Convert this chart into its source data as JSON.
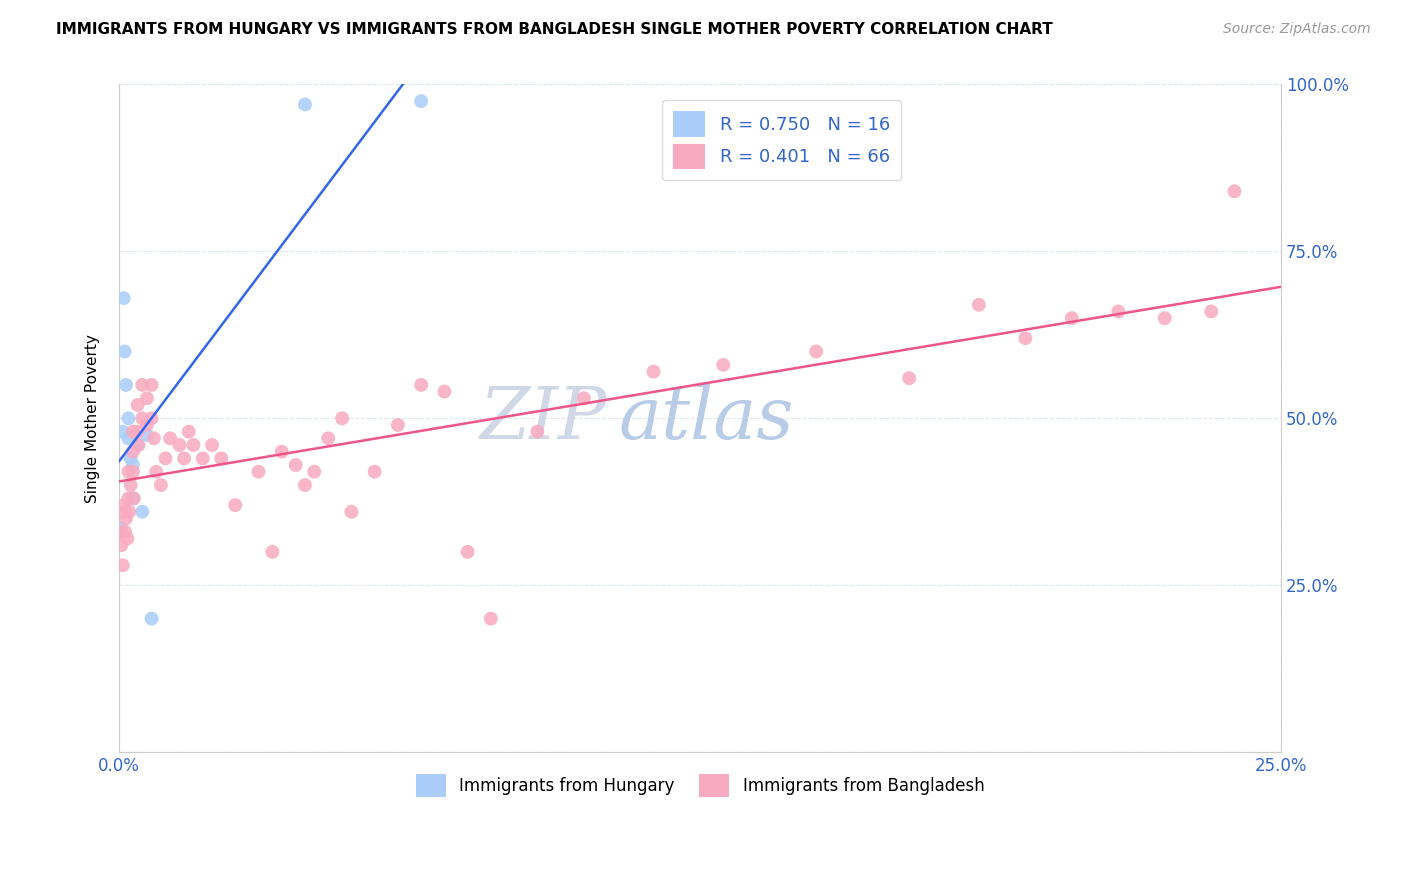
{
  "title": "IMMIGRANTS FROM HUNGARY VS IMMIGRANTS FROM BANGLADESH SINGLE MOTHER POVERTY CORRELATION CHART",
  "source": "Source: ZipAtlas.com",
  "ylabel": "Single Mother Poverty",
  "legend_labels": [
    "Immigrants from Hungary",
    "Immigrants from Bangladesh"
  ],
  "r_hungary": 0.75,
  "n_hungary": 16,
  "r_bangladesh": 0.401,
  "n_bangladesh": 66,
  "color_hungary": "#aaccf8",
  "color_bangladesh": "#f8aac0",
  "line_color_hungary": "#3366ee",
  "line_color_bangladesh": "#ee5588",
  "watermark_zip": "ZIP",
  "watermark_atlas": "atlas",
  "watermark_zip_color": "#d0d8e8",
  "watermark_atlas_color": "#b8cce8",
  "xlim": [
    0.0,
    0.25
  ],
  "ylim": [
    0.0,
    1.0
  ],
  "xtick_positions": [
    0.0,
    0.25
  ],
  "xtick_labels": [
    "0.0%",
    "25.0%"
  ],
  "yticks_right": [
    0.25,
    0.5,
    0.75,
    1.0
  ],
  "ytick_right_labels": [
    "25.0%",
    "50.0%",
    "75.0%",
    "100.0%"
  ],
  "hungary_x": [
    0.0005,
    0.0008,
    0.001,
    0.0012,
    0.0015,
    0.002,
    0.002,
    0.0025,
    0.003,
    0.003,
    0.004,
    0.005,
    0.006,
    0.007,
    0.04,
    0.065
  ],
  "hungary_y": [
    0.335,
    0.48,
    0.68,
    0.6,
    0.55,
    0.5,
    0.47,
    0.44,
    0.43,
    0.38,
    0.46,
    0.36,
    0.475,
    0.2,
    0.97,
    0.975
  ],
  "bangladesh_x": [
    0.0003,
    0.0005,
    0.0008,
    0.001,
    0.0012,
    0.0013,
    0.0015,
    0.0018,
    0.002,
    0.002,
    0.0022,
    0.0025,
    0.003,
    0.003,
    0.003,
    0.0032,
    0.004,
    0.004,
    0.0042,
    0.005,
    0.005,
    0.006,
    0.006,
    0.007,
    0.007,
    0.0075,
    0.008,
    0.009,
    0.01,
    0.011,
    0.013,
    0.014,
    0.015,
    0.016,
    0.018,
    0.02,
    0.022,
    0.025,
    0.03,
    0.033,
    0.035,
    0.038,
    0.04,
    0.042,
    0.045,
    0.048,
    0.05,
    0.055,
    0.06,
    0.065,
    0.07,
    0.075,
    0.08,
    0.09,
    0.1,
    0.115,
    0.13,
    0.15,
    0.17,
    0.185,
    0.195,
    0.205,
    0.215,
    0.225,
    0.235,
    0.24
  ],
  "bangladesh_y": [
    0.33,
    0.31,
    0.28,
    0.37,
    0.36,
    0.33,
    0.35,
    0.32,
    0.42,
    0.38,
    0.36,
    0.4,
    0.48,
    0.45,
    0.42,
    0.38,
    0.52,
    0.48,
    0.46,
    0.55,
    0.5,
    0.53,
    0.49,
    0.55,
    0.5,
    0.47,
    0.42,
    0.4,
    0.44,
    0.47,
    0.46,
    0.44,
    0.48,
    0.46,
    0.44,
    0.46,
    0.44,
    0.37,
    0.42,
    0.3,
    0.45,
    0.43,
    0.4,
    0.42,
    0.47,
    0.5,
    0.36,
    0.42,
    0.49,
    0.55,
    0.54,
    0.3,
    0.2,
    0.48,
    0.53,
    0.57,
    0.58,
    0.6,
    0.56,
    0.67,
    0.62,
    0.65,
    0.66,
    0.65,
    0.66,
    0.84
  ],
  "grid_color": "#dde8f0",
  "title_fontsize": 11,
  "source_fontsize": 10,
  "axis_label_color": "#3366cc",
  "marker_size": 100
}
